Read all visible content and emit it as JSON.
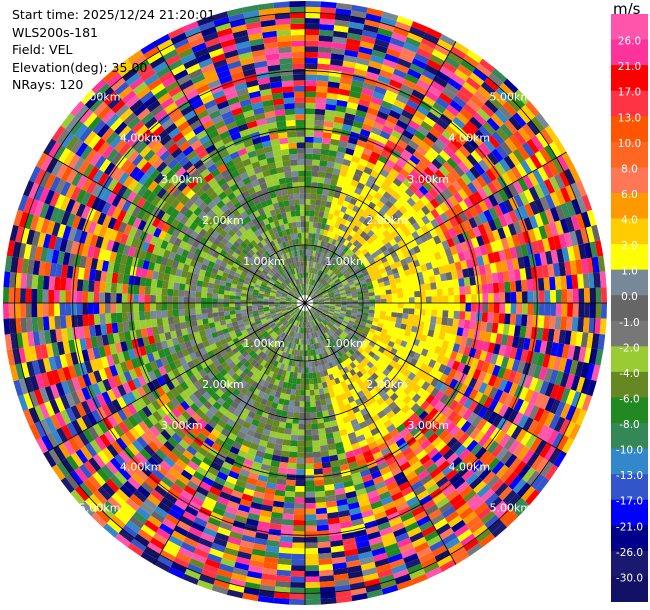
{
  "header": {
    "start_time": "Start time: 2025/12/24 21:20:01",
    "station": "WLS200s-181",
    "field": "Field: VEL",
    "elevation": "Elevation(deg): 35.00",
    "nrays": "NRays: 120"
  },
  "chart_data": {
    "type": "heatmap",
    "projection": "polar-ppi",
    "range_rings_km": [
      1,
      2,
      3,
      4,
      5
    ],
    "ring_labels": [
      "1.00km",
      "2.00km",
      "3.00km",
      "4.00km",
      "5.00km"
    ],
    "spokes_deg": [
      0,
      30,
      60,
      90,
      120,
      150,
      180,
      210,
      240,
      270,
      300,
      330
    ],
    "max_range_km": 5.2,
    "nrays": 120,
    "colorbar": {
      "unit": "m/s",
      "ticks": [
        "26.0",
        "21.0",
        "17.0",
        "13.0",
        "10.0",
        "8.0",
        "6.0",
        "4.0",
        "2.0",
        "1.0",
        "0.0",
        "-1.0",
        "-2.0",
        "-4.0",
        "-6.0",
        "-8.0",
        "-10.0",
        "-13.0",
        "-17.0",
        "-21.0",
        "-26.0",
        "-30.0"
      ],
      "colors": [
        "#ff55aa",
        "#ff3399",
        "#ff0000",
        "#ff3344",
        "#ff5500",
        "#ff6622",
        "#ff7755",
        "#ff9900",
        "#ffcc00",
        "#ffff00",
        "#778899",
        "#666666",
        "#777777",
        "#99cc33",
        "#668822",
        "#228822",
        "#338855",
        "#3388cc",
        "#3355cc",
        "#0000ff",
        "#000088",
        "#191970",
        "#111166"
      ]
    }
  }
}
